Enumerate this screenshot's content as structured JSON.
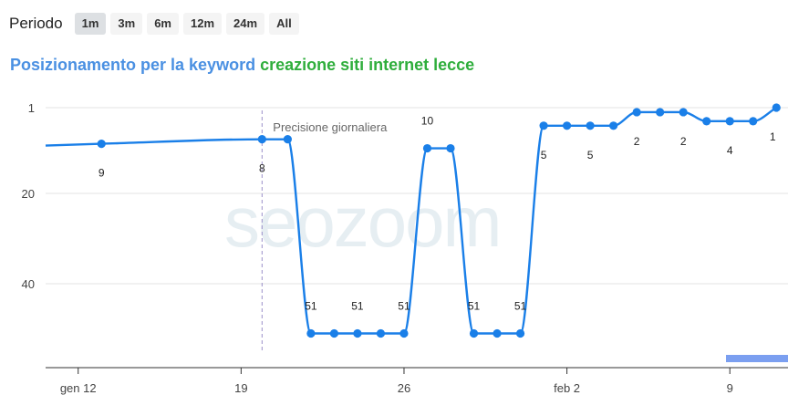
{
  "period": {
    "label": "Periodo",
    "options": [
      "1m",
      "3m",
      "6m",
      "12m",
      "24m",
      "All"
    ],
    "active": "1m"
  },
  "title": {
    "prefix": "Posizionamento per la keyword",
    "keyword": "creazione siti internet lecce",
    "prefix_color": "#4a90e2",
    "keyword_color": "#2fae3c"
  },
  "watermark": "seozoom",
  "chart_data": {
    "type": "line",
    "title": "",
    "xlabel": "",
    "ylabel": "",
    "y_inverted": true,
    "ylim": [
      1,
      59
    ],
    "y_ticks": [
      1,
      20,
      40
    ],
    "x_ticks": [
      {
        "label": "gen 12",
        "day": 12
      },
      {
        "label": "19",
        "day": 19
      },
      {
        "label": "26",
        "day": 26
      },
      {
        "label": "feb 2",
        "day": 33
      },
      {
        "label": "9",
        "day": 40
      }
    ],
    "x_range": [
      10.6,
      42.5
    ],
    "line_color": "#1a7fe8",
    "annotation": {
      "text": "Precisione giornaliera",
      "day": 19.9
    },
    "points": [
      {
        "day": 13,
        "pos": 9,
        "label": "9"
      },
      {
        "day": 19.9,
        "pos": 8,
        "label": "8"
      },
      {
        "day": 21,
        "pos": 8,
        "label": ""
      },
      {
        "day": 22,
        "pos": 51,
        "label": "51"
      },
      {
        "day": 23,
        "pos": 51,
        "label": ""
      },
      {
        "day": 24,
        "pos": 51,
        "label": "51"
      },
      {
        "day": 25,
        "pos": 51,
        "label": ""
      },
      {
        "day": 26,
        "pos": 51,
        "label": "51"
      },
      {
        "day": 27,
        "pos": 10,
        "label": "10"
      },
      {
        "day": 28,
        "pos": 10,
        "label": ""
      },
      {
        "day": 29,
        "pos": 51,
        "label": "51"
      },
      {
        "day": 30,
        "pos": 51,
        "label": ""
      },
      {
        "day": 31,
        "pos": 51,
        "label": "51"
      },
      {
        "day": 32,
        "pos": 5,
        "label": "5"
      },
      {
        "day": 33,
        "pos": 5,
        "label": ""
      },
      {
        "day": 34,
        "pos": 5,
        "label": "5"
      },
      {
        "day": 35,
        "pos": 5,
        "label": ""
      },
      {
        "day": 36,
        "pos": 2,
        "label": "2"
      },
      {
        "day": 37,
        "pos": 2,
        "label": ""
      },
      {
        "day": 38,
        "pos": 2,
        "label": "2"
      },
      {
        "day": 39,
        "pos": 4,
        "label": ""
      },
      {
        "day": 40,
        "pos": 4,
        "label": "4"
      },
      {
        "day": 41,
        "pos": 4,
        "label": ""
      },
      {
        "day": 42,
        "pos": 1,
        "label": "1"
      }
    ]
  }
}
